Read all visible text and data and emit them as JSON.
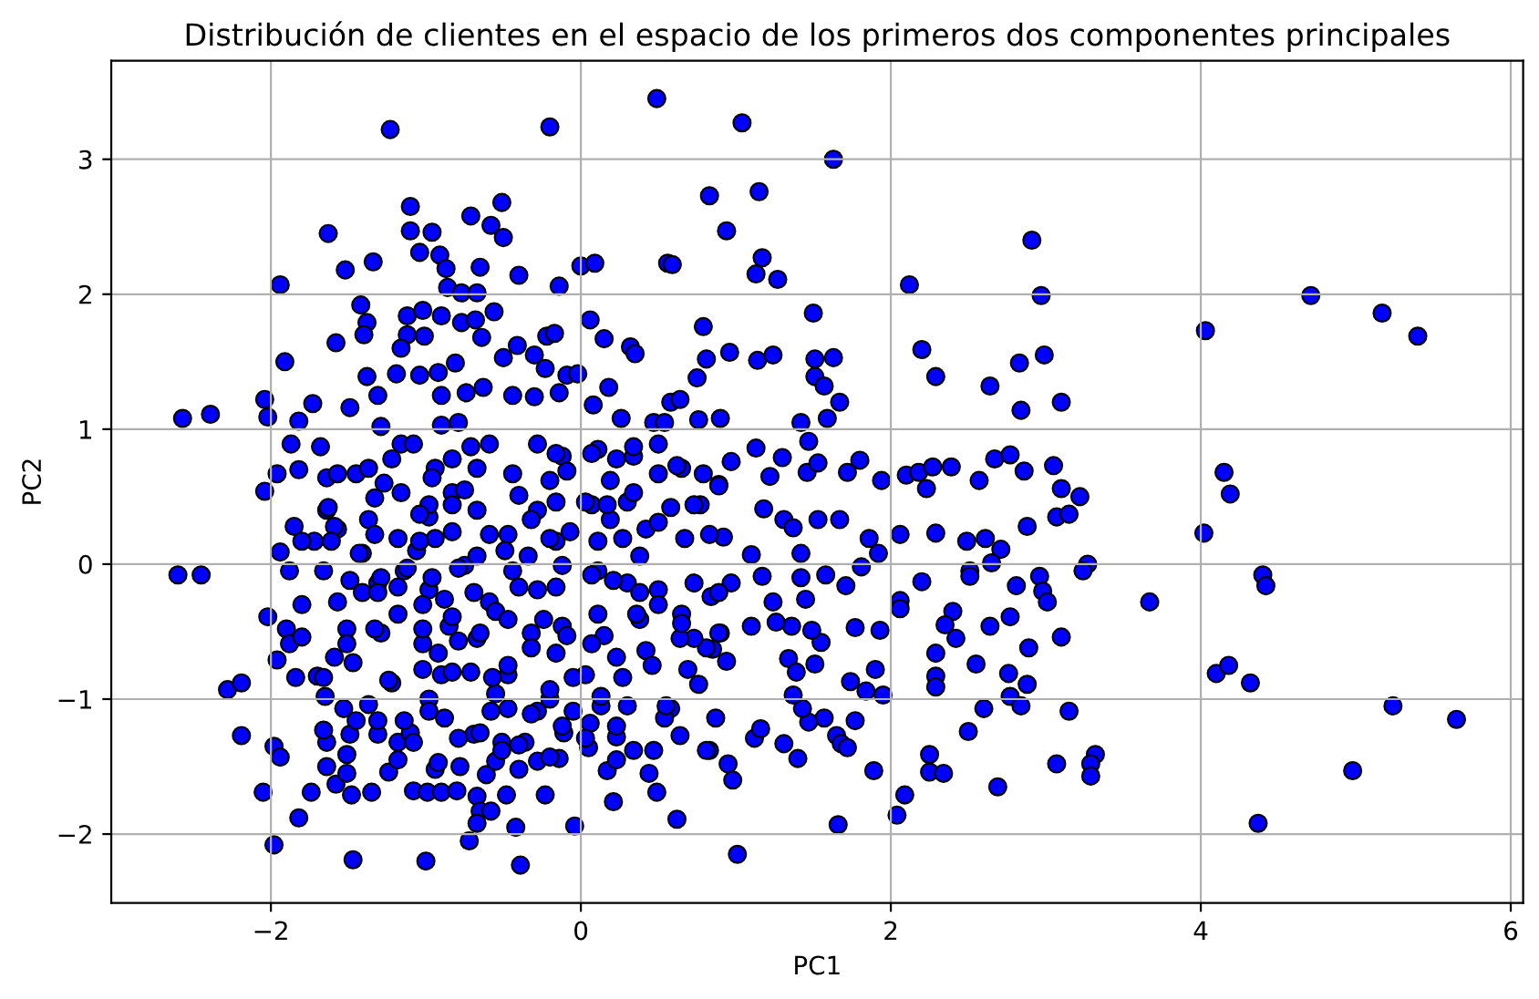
{
  "chart_data": {
    "type": "scatter",
    "title": "Distribución de clientes en el espacio de los primeros dos componentes principales",
    "xlabel": "PC1",
    "ylabel": "PC2",
    "color": "#0000ff",
    "marker": "circle",
    "grid": true,
    "xlim": [
      -3.03,
      6.08
    ],
    "ylim": [
      -2.51,
      3.73
    ],
    "xticks": [
      {
        "value": -2,
        "label": "−2"
      },
      0,
      2,
      4,
      6
    ],
    "yticks": [
      {
        "value": -2,
        "label": "−2"
      },
      {
        "value": -1,
        "label": "−1"
      },
      0,
      1,
      2,
      3
    ],
    "x": [
      -1.23,
      -0.2,
      0.49,
      0.83,
      -1.1,
      -0.71,
      -0.51,
      -0.58,
      -0.5,
      -1.63,
      -1.1,
      -0.96,
      -1.34,
      -1.52,
      -1.94,
      -1.04,
      -0.91,
      -0.87,
      -0.65,
      -0.4,
      -0.14,
      0.0,
      0.09,
      0.56,
      0.59,
      -0.86,
      -0.77,
      -0.67,
      -1.42,
      -1.38,
      -1.4,
      -1.58,
      -1.91,
      -1.12,
      -1.02,
      -0.9,
      -0.77,
      -0.68,
      -0.64,
      -0.56,
      -1.12,
      -1.16,
      -1.01,
      -0.81,
      -0.5,
      -0.41,
      -0.3,
      -0.23,
      -0.22,
      -0.17,
      0.06,
      0.15,
      0.32,
      0.35,
      0.79,
      0.81,
      0.75,
      -1.38,
      -1.19,
      -1.04,
      -0.92,
      -0.09,
      -0.02,
      0.18,
      -2.04,
      -2.02,
      -2.57,
      -2.39,
      -1.73,
      -1.82,
      -1.49,
      -1.31,
      -0.74,
      -0.63,
      -0.9,
      -0.44,
      -0.3,
      -0.14,
      0.08,
      0.26,
      0.47,
      0.54,
      0.58,
      0.64,
      0.76,
      -1.87,
      -1.68,
      -1.96,
      -2.04,
      -1.82,
      -1.64,
      -1.29,
      -1.16,
      1.04,
      1.63,
      1.15,
      0.94,
      1.17,
      1.13,
      1.27,
      2.12,
      2.91,
      2.97,
      4.71,
      5.17,
      5.4,
      4.03,
      2.2,
      2.29,
      2.64,
      2.83,
      2.99,
      3.1,
      2.84,
      1.5,
      0.96,
      1.14,
      1.24,
      1.51,
      1.63,
      1.51,
      1.57,
      1.67,
      0.9,
      1.42,
      1.59,
      1.13,
      1.3,
      1.47,
      1.8,
      1.94,
      2.1,
      2.18,
      2.27,
      2.39,
      2.57,
      2.67,
      2.77,
      2.86,
      3.05,
      3.1,
      3.22,
      4.15,
      4.19,
      2.23,
      0.97,
      0.89,
      1.22,
      1.46,
      1.53,
      1.72,
      4.02,
      4.4,
      4.42,
      3.67,
      4.1,
      4.18,
      4.32,
      5.24,
      5.65,
      4.98,
      4.37,
      2.06,
      2.29,
      2.49,
      2.61,
      2.71,
      2.88,
      3.07,
      3.15,
      3.27,
      3.24,
      2.51,
      2.51,
      2.65,
      2.2,
      2.81,
      2.96,
      2.98,
      3.01,
      2.06,
      2.06,
      2.4,
      2.35,
      2.42,
      2.64,
      2.77,
      3.1,
      2.89,
      2.29,
      2.55,
      2.76,
      2.88,
      2.29,
      2.29,
      2.77,
      2.84,
      2.6,
      3.15,
      2.5,
      2.25,
      2.25,
      2.34,
      3.07,
      3.32,
      3.29,
      3.29,
      2.69,
      2.09,
      2.04,
      1.66,
      1.01,
      1.89,
      1.9,
      1.95,
      1.84,
      1.74,
      1.77,
      1.65,
      1.68,
      1.72,
      1.57,
      1.47,
      1.43,
      1.37,
      1.31,
      1.4,
      1.12,
      1.16,
      0.87,
      0.83,
      0.95,
      0.98,
      1.93,
      1.77,
      1.36,
      1.26,
      1.1,
      1.24,
      1.45,
      1.42,
      1.17,
      1.58,
      1.71,
      1.81,
      1.34,
      1.39,
      1.51,
      1.55,
      1.49,
      0.9,
      0.85,
      0.94,
      0.84,
      0.97,
      1.18,
      1.31,
      1.37,
      1.53,
      1.67,
      1.86,
      1.92,
      1.42,
      1.1,
      0.92,
      -2.6,
      -2.45,
      -2.28,
      -2.19,
      -2.19,
      -2.05,
      -1.98,
      -1.47,
      -1.0,
      -0.39,
      -0.04,
      -0.42,
      -0.72,
      -1.82,
      -1.74,
      -1.98,
      -1.94,
      -2.02,
      -1.96,
      -1.84,
      -1.88,
      -1.94,
      -1.85,
      -1.9,
      -1.88,
      -1.8,
      -1.65,
      -1.7,
      -1.64,
      -1.66,
      -1.64,
      -1.58,
      -1.51,
      -1.48,
      -1.35,
      -1.08,
      -0.99,
      -0.9,
      -0.8,
      -0.67,
      -0.65,
      -0.58,
      -0.67,
      -0.48,
      -0.23,
      0.21,
      0.62,
      0.44,
      0.49,
      0.81,
      0.64,
      0.58,
      0.54,
      0.05,
      0.17,
      0.23,
      0.34,
      0.47,
      -0.14,
      -0.28,
      -0.4,
      -0.61,
      -0.55,
      -0.94,
      -1.24,
      -1.31,
      -1.18,
      -1.51,
      -1.49,
      -1.45,
      -1.53,
      -1.22,
      -1.37,
      -0.58,
      -0.88,
      -0.69,
      -0.78,
      -0.51,
      -0.36,
      -0.11,
      0.06,
      0.23,
      0.3,
      0.13,
      0.55,
      0.69,
      0.76,
      0.81,
      0.73,
      0.64,
      -1.64,
      -1.72,
      -1.57,
      -1.41,
      -1.37,
      -1.18,
      -0.98,
      -1.06,
      -0.83,
      -0.67,
      -0.47,
      -0.28,
      -0.16,
      0.07,
      0.19,
      0.3,
      0.42,
      0.58,
      0.67,
      0.77,
      -1.66,
      -1.57,
      -1.51,
      -1.41,
      -1.31,
      -1.29,
      -1.18,
      -1.14,
      -1.02,
      -0.98,
      -0.9,
      -0.85,
      -0.75,
      -0.67,
      -0.59,
      -0.47,
      -0.44,
      -0.32,
      -0.28,
      -0.2,
      -0.12,
      -0.12,
      0.03,
      0.11,
      0.11,
      0.23,
      0.3,
      0.38,
      0.42,
      0.5,
      0.65,
      0.73,
      -0.98,
      -1.1,
      -0.55,
      -0.28,
      -0.05,
      -0.94,
      -0.83,
      -0.67,
      -0.59,
      -0.44,
      -0.28,
      -0.2,
      -0.12,
      0.11,
      0.19,
      0.34,
      0.5,
      0.5,
      0.65,
      0.79,
      -1.45,
      -1.33,
      -0.98,
      -1.63,
      -1.57,
      -1.37,
      -1.22,
      -1.08,
      -0.9,
      -0.79,
      -0.71,
      -0.83,
      -0.96,
      -1.16,
      -1.27,
      -0.75,
      -0.83,
      -1.04,
      -0.94,
      -1.04,
      -1.33,
      -1.59,
      -1.8,
      -1.61,
      -1.43,
      -0.59,
      -0.49,
      -0.67,
      -0.79,
      -0.96,
      -1.12,
      -1.29,
      -1.49,
      -1.8,
      -1.31,
      -1.18,
      -1.02,
      -0.88,
      -0.69,
      -0.55,
      -0.83,
      -1.02,
      -1.33,
      -1.51,
      -1.59,
      -1.47,
      -1.24,
      -1.66,
      -0.92,
      -0.79,
      -0.65,
      -0.71,
      -0.83,
      -1.02,
      -0.57,
      -1.31,
      -1.14,
      -0.98,
      -0.65,
      -0.79,
      -1.08,
      -1.18,
      -0.92,
      -0.51,
      -0.16,
      -0.09,
      0.07,
      0.23,
      0.34,
      0.62,
      0.89,
      -0.4,
      -0.16,
      0.03,
      0.17,
      0.34,
      0.5,
      0.73,
      0.83,
      -0.32,
      -0.2,
      -0.07,
      0.11,
      0.27,
      0.38,
      -0.34,
      -0.4,
      -0.16,
      0.07,
      0.21,
      0.38,
      0.5,
      0.89,
      -0.47,
      -0.24,
      -0.09,
      0.15,
      0.36,
      0.65,
      0.89,
      -0.32,
      -0.16,
      0.07,
      0.27,
      0.46,
      -0.47,
      -0.2,
      -0.05,
      0.13,
      -0.47,
      -0.32,
      -0.12,
      0.23,
      -0.4,
      -0.2,
      0.03
    ],
    "values": [
      3.22,
      3.24,
      3.45,
      2.73,
      2.65,
      2.58,
      2.68,
      2.51,
      2.42,
      2.45,
      2.47,
      2.46,
      2.24,
      2.18,
      2.07,
      2.31,
      2.29,
      2.19,
      2.2,
      2.14,
      2.06,
      2.21,
      2.23,
      2.23,
      2.22,
      2.05,
      2.01,
      2.01,
      1.92,
      1.79,
      1.7,
      1.64,
      1.5,
      1.84,
      1.88,
      1.84,
      1.79,
      1.81,
      1.68,
      1.87,
      1.7,
      1.6,
      1.69,
      1.49,
      1.53,
      1.62,
      1.55,
      1.45,
      1.69,
      1.71,
      1.81,
      1.67,
      1.61,
      1.56,
      1.76,
      1.52,
      1.38,
      1.39,
      1.41,
      1.4,
      1.42,
      1.4,
      1.41,
      1.31,
      1.22,
      1.09,
      1.08,
      1.11,
      1.19,
      1.06,
      1.16,
      1.25,
      1.27,
      1.31,
      1.25,
      1.25,
      1.24,
      1.27,
      1.18,
      1.08,
      1.05,
      1.05,
      1.2,
      1.22,
      1.07,
      0.89,
      0.87,
      0.67,
      0.54,
      0.7,
      0.64,
      1.02,
      0.89,
      3.27,
      3.0,
      2.76,
      2.47,
      2.27,
      2.15,
      2.11,
      2.07,
      2.4,
      1.99,
      1.99,
      1.86,
      1.69,
      1.73,
      1.59,
      1.39,
      1.32,
      1.49,
      1.55,
      1.2,
      1.14,
      1.86,
      1.57,
      1.51,
      1.55,
      1.52,
      1.53,
      1.39,
      1.32,
      1.2,
      1.08,
      1.05,
      1.08,
      0.86,
      0.79,
      0.91,
      0.77,
      0.62,
      0.66,
      0.68,
      0.72,
      0.72,
      0.62,
      0.78,
      0.81,
      0.69,
      0.73,
      0.56,
      0.5,
      0.68,
      0.52,
      0.56,
      0.76,
      0.59,
      0.65,
      0.68,
      0.75,
      0.68,
      0.23,
      -0.08,
      -0.16,
      -0.28,
      -0.81,
      -0.75,
      -0.88,
      -1.05,
      -1.15,
      -1.53,
      -1.92,
      0.22,
      0.23,
      0.17,
      0.19,
      0.11,
      0.28,
      0.35,
      0.37,
      0.0,
      -0.05,
      -0.05,
      -0.09,
      0.01,
      -0.13,
      -0.16,
      -0.09,
      -0.2,
      -0.28,
      -0.27,
      -0.33,
      -0.35,
      -0.45,
      -0.55,
      -0.46,
      -0.39,
      -0.54,
      -0.62,
      -0.66,
      -0.74,
      -0.81,
      -0.89,
      -0.83,
      -0.91,
      -0.98,
      -1.05,
      -1.07,
      -1.09,
      -1.24,
      -1.41,
      -1.54,
      -1.55,
      -1.48,
      -1.41,
      -1.48,
      -1.57,
      -1.65,
      -1.71,
      -1.86,
      -1.93,
      -2.15,
      -1.53,
      -0.78,
      -0.97,
      -0.94,
      -0.87,
      -1.16,
      -1.27,
      -1.33,
      -1.36,
      -1.14,
      -1.17,
      -1.07,
      -0.97,
      -1.33,
      -1.44,
      -1.29,
      -1.22,
      -1.14,
      -1.38,
      -1.48,
      -1.6,
      -0.49,
      -0.47,
      -0.46,
      -0.43,
      -0.46,
      -0.28,
      -0.26,
      -0.1,
      -0.09,
      -0.08,
      -0.16,
      -0.02,
      -0.7,
      -0.8,
      -0.74,
      -0.58,
      -0.49,
      -0.51,
      -0.63,
      -0.72,
      -0.24,
      -0.14,
      0.41,
      0.33,
      0.27,
      0.33,
      0.33,
      0.19,
      0.08,
      0.08,
      0.07,
      0.2,
      -0.08,
      -0.08,
      -0.93,
      -0.88,
      -1.27,
      -1.69,
      -2.08,
      -2.19,
      -2.2,
      -2.23,
      -1.94,
      -1.95,
      -2.05,
      -1.88,
      -1.69,
      -1.35,
      -1.43,
      -0.39,
      -0.71,
      -0.84,
      -0.05,
      0.09,
      0.28,
      -0.48,
      -0.59,
      -0.54,
      -0.98,
      -0.83,
      -1.32,
      -1.23,
      -1.5,
      -1.63,
      -1.55,
      -1.71,
      -1.69,
      -1.68,
      -1.69,
      -1.69,
      -1.68,
      -1.72,
      -1.83,
      -1.83,
      -1.92,
      -1.71,
      -1.71,
      -1.76,
      -1.89,
      -1.55,
      -1.69,
      -1.38,
      -1.27,
      -1.07,
      -1.14,
      -1.36,
      -1.53,
      -1.45,
      -1.38,
      -1.38,
      -1.44,
      -1.46,
      -1.52,
      -1.56,
      -1.46,
      -1.52,
      -1.54,
      -1.26,
      -1.32,
      -1.41,
      -1.26,
      -1.16,
      -1.07,
      -0.88,
      -1.04,
      -1.09,
      -1.14,
      -1.26,
      -1.5,
      -1.32,
      -1.32,
      -1.25,
      -1.18,
      -1.28,
      -1.05,
      -1.05,
      -1.05,
      -0.78,
      -0.89,
      -0.62,
      -0.55,
      -0.55,
      0.4,
      0.17,
      0.26,
      0.08,
      0.33,
      0.19,
      0.35,
      0.1,
      0.24,
      0.4,
      0.22,
      0.4,
      0.17,
      0.44,
      0.33,
      0.46,
      0.26,
      0.42,
      0.19,
      0.44,
      -0.05,
      -0.28,
      -0.48,
      -0.21,
      -0.14,
      -0.51,
      -0.37,
      -0.05,
      -0.59,
      -0.19,
      -0.82,
      -0.46,
      -0.01,
      -0.55,
      -0.28,
      -0.82,
      -0.05,
      -0.51,
      -0.19,
      -1.0,
      -0.46,
      -0.01,
      -0.82,
      -0.37,
      -0.05,
      -0.69,
      -0.14,
      -0.41,
      -0.64,
      -0.19,
      -0.37,
      -0.14,
      -1.0,
      -1.25,
      -0.96,
      -1.09,
      -1.09,
      0.71,
      0.53,
      0.71,
      0.89,
      0.67,
      0.89,
      0.62,
      0.8,
      0.85,
      0.62,
      0.8,
      0.89,
      0.67,
      0.71,
      0.67,
      0.67,
      0.49,
      0.44,
      0.42,
      0.67,
      0.71,
      0.78,
      0.89,
      1.03,
      1.05,
      0.87,
      0.78,
      0.64,
      0.53,
      0.6,
      0.55,
      0.44,
      0.37,
      0.19,
      0.17,
      0.22,
      0.28,
      0.17,
      0.17,
      0.08,
      0.22,
      0.1,
      0.06,
      -0.03,
      -0.1,
      -0.03,
      -0.1,
      -0.12,
      -0.3,
      -0.21,
      -0.17,
      -0.3,
      -0.26,
      -0.21,
      -0.35,
      -0.39,
      -0.48,
      -0.48,
      -0.59,
      -0.69,
      -0.73,
      -0.86,
      -0.84,
      -0.66,
      -0.57,
      -0.51,
      -0.8,
      -0.8,
      -0.78,
      -0.84,
      -1.16,
      -1.16,
      -1.09,
      -1.25,
      -1.29,
      -1.32,
      -1.45,
      -1.47,
      -1.38,
      0.82,
      0.69,
      0.82,
      0.78,
      0.87,
      0.73,
      0.58,
      0.51,
      0.46,
      0.46,
      0.44,
      0.53,
      0.31,
      0.44,
      0.22,
      0.33,
      0.19,
      0.24,
      0.17,
      0.19,
      0.06,
      0.06,
      -0.17,
      -0.17,
      -0.08,
      -0.12,
      -0.21,
      -0.3,
      -0.21,
      -0.41,
      -0.41,
      -0.53,
      -0.53,
      -0.37,
      -0.44,
      -0.51,
      -0.62,
      -0.66,
      -0.59,
      -0.84,
      -0.75,
      -0.75,
      -0.93,
      -0.84,
      -0.98,
      -1.07,
      -1.11,
      -1.2,
      -1.2,
      -1.34,
      -1.43,
      -1.29
    ]
  }
}
